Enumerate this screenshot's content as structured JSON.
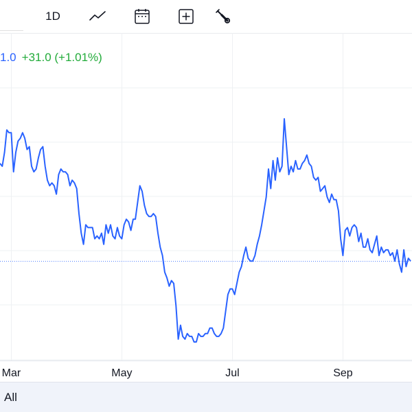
{
  "toolbar": {
    "interval_label": "1D",
    "icons": [
      "line-chart-icon",
      "calendar-icon",
      "add-plus-icon",
      "wrench-icon"
    ]
  },
  "quote": {
    "price_fragment": "1.0",
    "change": "+31.0 (+1.01%)",
    "price_color": "#2962ff",
    "change_color": "#22ab3a"
  },
  "range": {
    "all_label": "All"
  },
  "colors": {
    "line": "#2962ff",
    "grid": "#eef0f3",
    "reference_line": "#2962ff"
  },
  "chart_data": {
    "type": "line",
    "x_ticks": [
      "Mar",
      "May",
      "Jul",
      "Sep"
    ],
    "x_tick_index": [
      5,
      54,
      103,
      152
    ],
    "y_visible": false,
    "reference_level": 0,
    "series": [
      {
        "values": [
          35,
          34,
          39,
          47,
          46,
          46,
          32,
          39,
          43,
          44,
          46,
          44,
          40,
          41,
          34,
          32,
          33,
          37,
          40,
          41,
          34,
          29,
          27,
          28,
          27,
          24,
          31,
          33,
          32,
          32,
          31,
          27,
          29,
          28,
          26,
          17,
          10,
          6,
          13,
          12,
          12,
          12,
          8,
          9,
          8,
          10,
          6,
          13,
          10,
          13,
          9,
          8,
          12,
          9,
          8,
          13,
          15,
          14,
          11,
          15,
          15,
          21,
          27,
          25,
          20,
          17,
          16,
          16,
          17,
          16,
          10,
          5,
          2,
          -4,
          -6,
          -9,
          -7,
          -8,
          -16,
          -28,
          -23,
          -27,
          -28,
          -26,
          -27,
          -27,
          -29,
          -29,
          -26,
          -27,
          -27,
          -26,
          -26,
          -24,
          -24,
          -26,
          -27,
          -27,
          -26,
          -24,
          -18,
          -12,
          -10,
          -10,
          -12,
          -8,
          -4,
          -2,
          2,
          5,
          1,
          0,
          0,
          2,
          6,
          9,
          13,
          18,
          23,
          33,
          26,
          36,
          29,
          37,
          32,
          34,
          51,
          41,
          31,
          34,
          32,
          36,
          33,
          33,
          35,
          36,
          38,
          35,
          34,
          30,
          29,
          30,
          25,
          26,
          27,
          23,
          21,
          24,
          22,
          22,
          18,
          8,
          2,
          11,
          12,
          9,
          12,
          13,
          12,
          7,
          10,
          5,
          5,
          8,
          4,
          3,
          6,
          9,
          2,
          5,
          3,
          4,
          4,
          2,
          3,
          0,
          4,
          -1,
          -4,
          4,
          -2,
          1,
          0
        ],
        "color": "#2962ff"
      }
    ],
    "grid": true
  }
}
